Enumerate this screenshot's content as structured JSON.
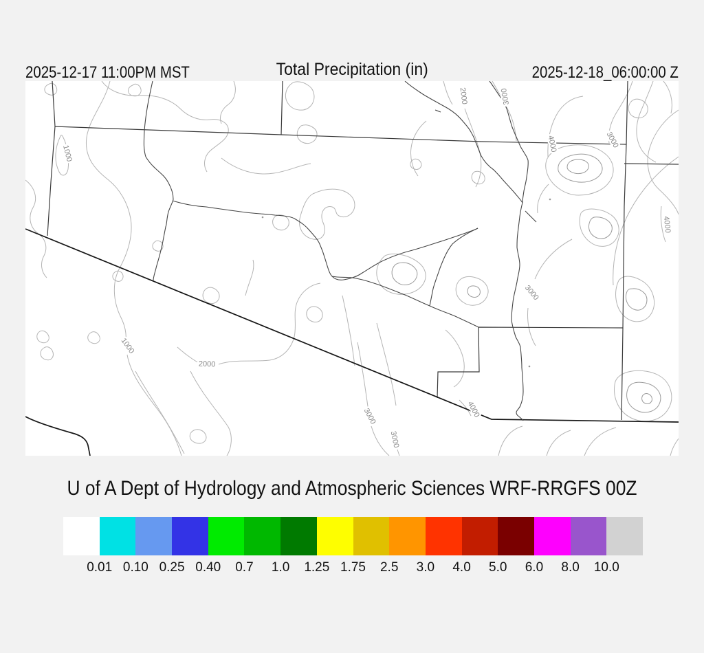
{
  "header": {
    "left_timestamp": "2025-12-17 11:00PM MST",
    "title": "Total Precipitation (in)",
    "right_timestamp": "2025-12-18_06:00:00 Z"
  },
  "map": {
    "background": "#ffffff",
    "contour_line_color": "#b4b4b4",
    "border_line_color": "#3a3a3a",
    "contour_labels": [
      {
        "text": "1000"
      },
      {
        "text": "1000"
      },
      {
        "text": "2000"
      },
      {
        "text": "2000"
      },
      {
        "text": "3000"
      },
      {
        "text": "4000"
      },
      {
        "text": "3000"
      },
      {
        "text": "4000"
      },
      {
        "text": "3000"
      },
      {
        "text": "4000"
      },
      {
        "text": "3000"
      },
      {
        "text": "3000"
      }
    ]
  },
  "footer": {
    "caption": "U of A Dept of Hydrology and Atmospheric Sciences WRF-RRGFS 00Z"
  },
  "colorbar": {
    "colors": [
      "#ffffff",
      "#00e1e4",
      "#6699f0",
      "#3333e6",
      "#00eb00",
      "#00b800",
      "#007a00",
      "#fefe00",
      "#e0c000",
      "#ff9500",
      "#ff3300",
      "#c21d00",
      "#7a0000",
      "#fe00fe",
      "#9955cc",
      "#d2d2d2"
    ],
    "labels": [
      "0.01",
      "0.10",
      "0.25",
      "0.40",
      "0.7",
      "1.0",
      "1.25",
      "1.75",
      "2.5",
      "3.0",
      "4.0",
      "5.0",
      "6.0",
      "8.0",
      "10.0"
    ],
    "thresholds": [
      0.01,
      0.1,
      0.25,
      0.4,
      0.7,
      1.0,
      1.25,
      1.75,
      2.5,
      3.0,
      4.0,
      5.0,
      6.0,
      8.0,
      10.0
    ]
  }
}
